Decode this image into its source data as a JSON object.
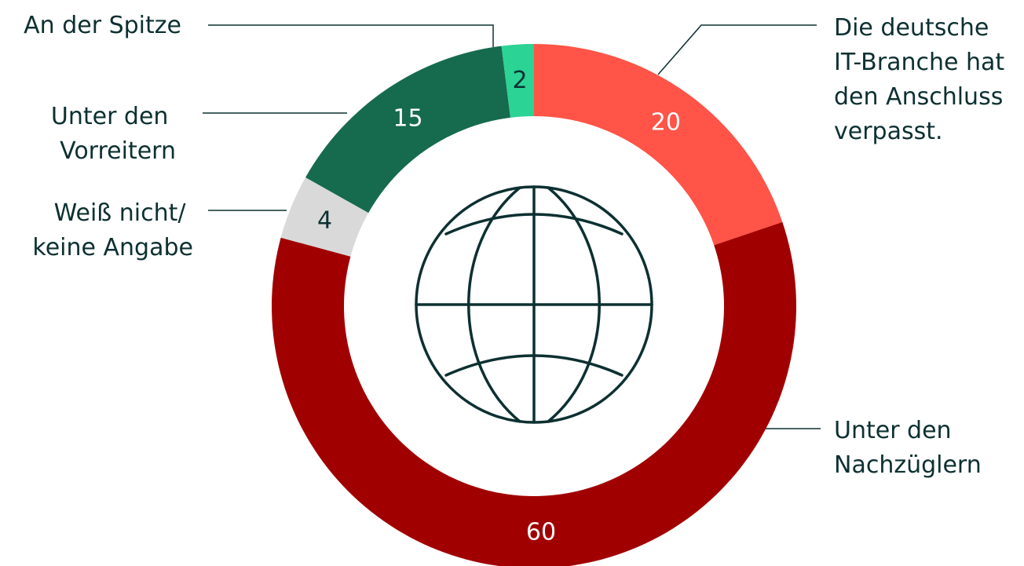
{
  "chart_data": {
    "type": "pie",
    "unit": "",
    "title": "",
    "slices": [
      {
        "label": "Die deutsche IT-Branche hat den Anschluss verpasst.",
        "lines": [
          "Die deutsche",
          "IT-Branche hat",
          "den Anschluss",
          "verpasst."
        ],
        "value": 20,
        "color": "#ff5447",
        "text_color": "#ffffff"
      },
      {
        "label": "Unter den Nachzüglern",
        "lines": [
          "Unter den",
          "Nachzüglern"
        ],
        "value": 60,
        "color": "#a10000",
        "text_color": "#ffffff"
      },
      {
        "label": "Weiß nicht/ keine Angabe",
        "lines": [
          "Weiß nicht/",
          "keine Angabe"
        ],
        "value": 4,
        "color": "#d9d9d9",
        "text_color": "#0d3031"
      },
      {
        "label": "Unter den Vorreitern",
        "lines": [
          "Unter den",
          "Vorreitern"
        ],
        "value": 15,
        "color": "#166a4e",
        "text_color": "#ffffff"
      },
      {
        "label": "An der Spitze",
        "lines": [
          "An der Spitze"
        ],
        "value": 2,
        "color": "#2bd394",
        "text_color": "#0d3031"
      }
    ],
    "center_icon": "globe-icon",
    "colors": {
      "text": "#0d3031",
      "leader": "#0d3031",
      "icon": "#0d3031"
    }
  }
}
